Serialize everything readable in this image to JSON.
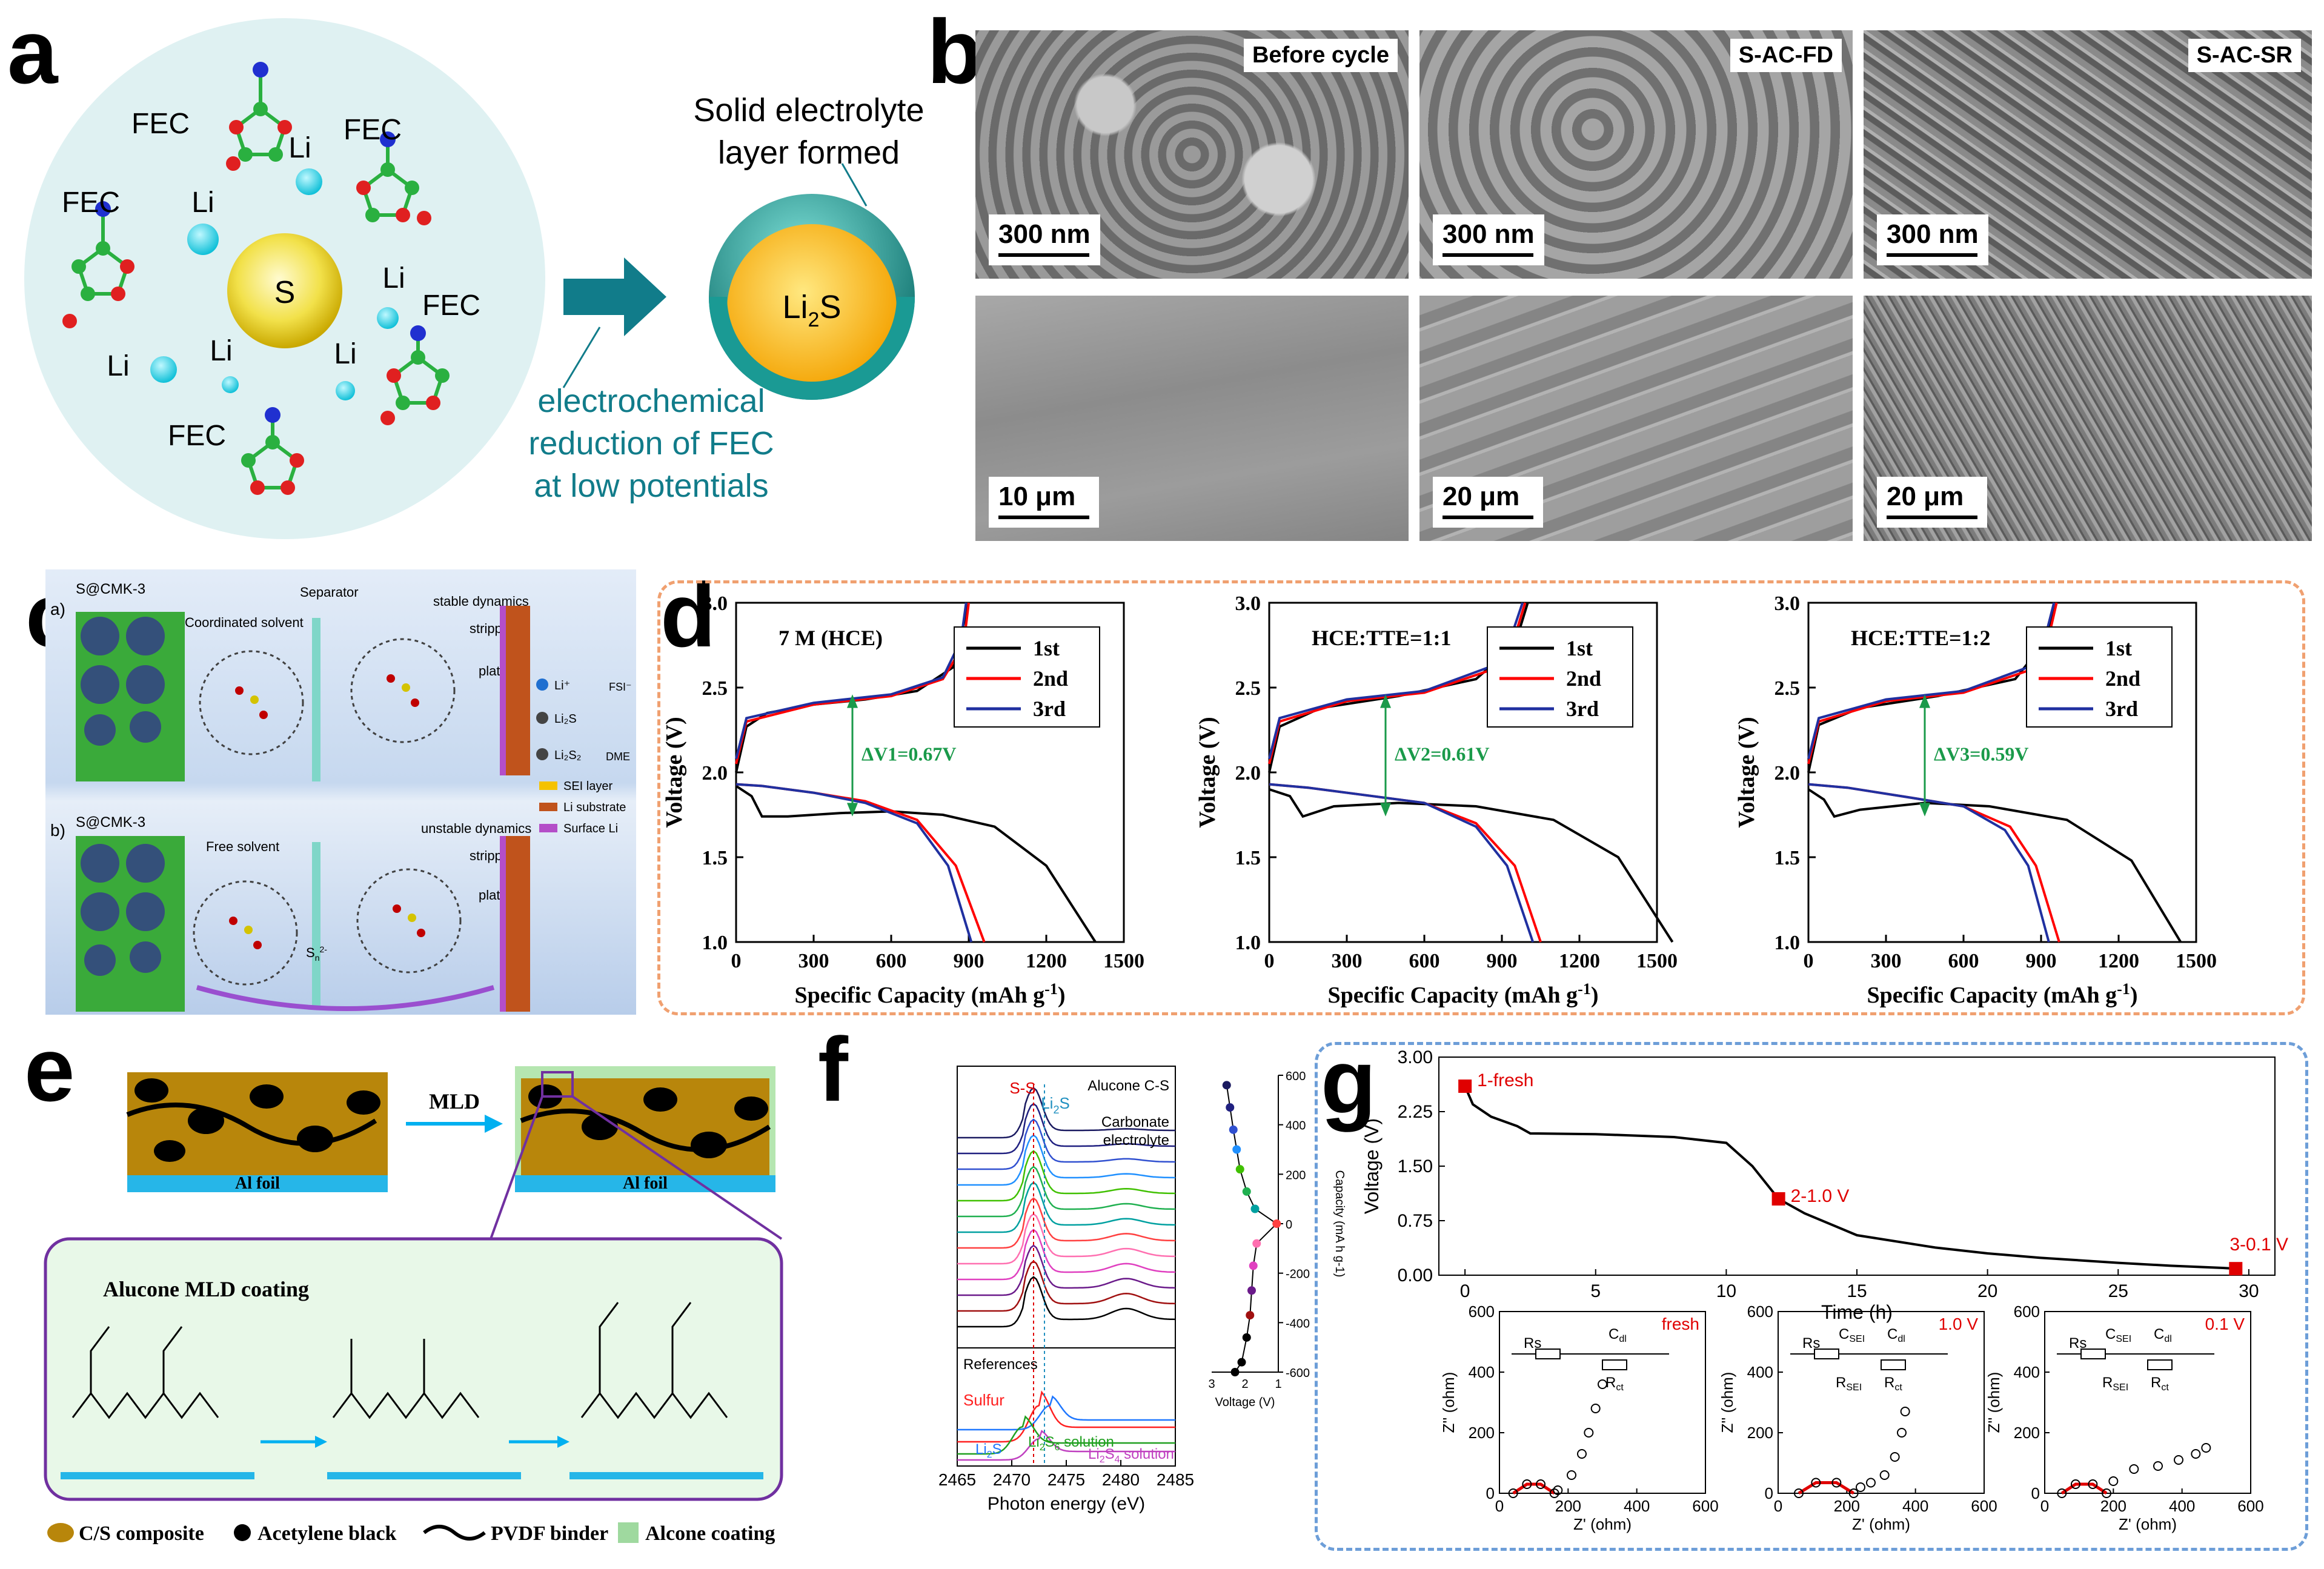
{
  "panel_labels": {
    "a": "a",
    "b": "b",
    "c": "c",
    "d": "d",
    "e": "e",
    "f": "f",
    "g": "g"
  },
  "panel_a": {
    "fec": "FEC",
    "li": "Li",
    "s": "S",
    "li2s_main": "Li",
    "li2s_sub": "2",
    "li2s_end": "S",
    "sei_line1": "Solid electrolyte",
    "sei_line2": "layer formed",
    "red_line1": "electrochemical",
    "red_line2": "reduction of FEC",
    "red_line3": "at low potentials"
  },
  "panel_b": {
    "top": [
      {
        "caption": "Before cycle",
        "scale": "300 nm"
      },
      {
        "caption": "S-AC-FD",
        "scale": "300 nm"
      },
      {
        "caption": "S-AC-SR",
        "scale": "300 nm"
      }
    ],
    "bottom": [
      {
        "scale": "10 μm"
      },
      {
        "scale": "20 μm"
      },
      {
        "scale": "20 μm"
      }
    ]
  },
  "panel_c": {
    "sub_a": "a)",
    "sub_b": "b)",
    "cathode": "S@CMK-3",
    "separator": "Separator",
    "coordinated": "Coordinated solvent",
    "free": "Free solvent",
    "stable": "stable dynamics",
    "unstable": "unstable dynamics",
    "stripping": "stripping",
    "plating": "plating",
    "s8": "S",
    "li2sn": "Li",
    "li2s_s": "Li",
    "sn2": "S",
    "legend": [
      {
        "label": "Li⁺",
        "color": "#1f6fd0"
      },
      {
        "label": "Li₂S",
        "color": "#444444"
      },
      {
        "label": "Li₂S₂",
        "color": "#444444"
      },
      {
        "label": "FSI⁻",
        "color": "#8a2be2"
      },
      {
        "label": "DME",
        "color": "#c00000"
      },
      {
        "label": "SEI layer",
        "color": "#f5c200"
      },
      {
        "label": "Li substrate",
        "color": "#c0531c"
      },
      {
        "label": "Surface Li",
        "color": "#b44ec8"
      }
    ]
  },
  "chart_data": [
    {
      "type": "line",
      "panel": "d1",
      "title": "7 M (HCE)",
      "xlabel": "Specific Capacity (mAh g-1)",
      "ylabel": "Voltage (V)",
      "xlim": [
        0,
        1500
      ],
      "ylim": [
        1.0,
        3.0
      ],
      "xticks": [
        "0",
        "300",
        "600",
        "900",
        "1200",
        "1500"
      ],
      "yticks": [
        "1.0",
        "1.5",
        "2.0",
        "2.5",
        "3.0"
      ],
      "annotation": "ΔV1=0.67V",
      "series": [
        {
          "name": "1st",
          "color": "#000000",
          "discharge": [
            [
              0,
              1.92
            ],
            [
              60,
              1.86
            ],
            [
              100,
              1.74
            ],
            [
              200,
              1.74
            ],
            [
              400,
              1.76
            ],
            [
              600,
              1.77
            ],
            [
              800,
              1.75
            ],
            [
              1000,
              1.68
            ],
            [
              1200,
              1.45
            ],
            [
              1390,
              1.0
            ]
          ],
          "charge": [
            [
              0,
              2.0
            ],
            [
              40,
              2.27
            ],
            [
              120,
              2.35
            ],
            [
              300,
              2.4
            ],
            [
              500,
              2.43
            ],
            [
              700,
              2.48
            ],
            [
              840,
              2.62
            ],
            [
              900,
              3.0
            ]
          ]
        },
        {
          "name": "2nd",
          "color": "#ff0000",
          "discharge": [
            [
              0,
              1.93
            ],
            [
              100,
              1.92
            ],
            [
              300,
              1.88
            ],
            [
              500,
              1.83
            ],
            [
              700,
              1.72
            ],
            [
              850,
              1.45
            ],
            [
              960,
              1.0
            ]
          ],
          "charge": [
            [
              0,
              2.05
            ],
            [
              40,
              2.3
            ],
            [
              300,
              2.4
            ],
            [
              600,
              2.45
            ],
            [
              800,
              2.55
            ],
            [
              880,
              2.75
            ],
            [
              900,
              3.0
            ]
          ]
        },
        {
          "name": "3rd",
          "color": "#2030a0",
          "discharge": [
            [
              0,
              1.93
            ],
            [
              100,
              1.92
            ],
            [
              300,
              1.88
            ],
            [
              500,
              1.82
            ],
            [
              700,
              1.7
            ],
            [
              820,
              1.45
            ],
            [
              910,
              1.0
            ]
          ],
          "charge": [
            [
              0,
              2.08
            ],
            [
              40,
              2.32
            ],
            [
              300,
              2.41
            ],
            [
              600,
              2.46
            ],
            [
              800,
              2.56
            ],
            [
              870,
              2.78
            ],
            [
              890,
              3.0
            ]
          ]
        }
      ]
    },
    {
      "type": "line",
      "panel": "d2",
      "title": "HCE:TTE=1:1",
      "xlabel": "Specific Capacity (mAh g-1)",
      "ylabel": "Voltage (V)",
      "xlim": [
        0,
        1500
      ],
      "ylim": [
        1.0,
        3.0
      ],
      "xticks": [
        "0",
        "300",
        "600",
        "900",
        "1200",
        "1500"
      ],
      "yticks": [
        "1.0",
        "1.5",
        "2.0",
        "2.5",
        "3.0"
      ],
      "annotation": "ΔV2=0.61V",
      "series": [
        {
          "name": "1st",
          "color": "#000000",
          "discharge": [
            [
              0,
              1.9
            ],
            [
              80,
              1.86
            ],
            [
              130,
              1.74
            ],
            [
              250,
              1.8
            ],
            [
              500,
              1.82
            ],
            [
              800,
              1.8
            ],
            [
              1100,
              1.72
            ],
            [
              1350,
              1.5
            ],
            [
              1560,
              1.0
            ]
          ],
          "charge": [
            [
              0,
              2.0
            ],
            [
              40,
              2.27
            ],
            [
              200,
              2.38
            ],
            [
              500,
              2.45
            ],
            [
              800,
              2.55
            ],
            [
              950,
              2.75
            ],
            [
              1000,
              3.0
            ]
          ]
        },
        {
          "name": "2nd",
          "color": "#ff0000",
          "discharge": [
            [
              0,
              1.93
            ],
            [
              150,
              1.91
            ],
            [
              400,
              1.86
            ],
            [
              600,
              1.82
            ],
            [
              800,
              1.7
            ],
            [
              950,
              1.45
            ],
            [
              1050,
              1.0
            ]
          ],
          "charge": [
            [
              0,
              2.05
            ],
            [
              40,
              2.3
            ],
            [
              300,
              2.42
            ],
            [
              600,
              2.47
            ],
            [
              850,
              2.6
            ],
            [
              950,
              2.8
            ],
            [
              990,
              3.0
            ]
          ]
        },
        {
          "name": "3rd",
          "color": "#2030a0",
          "discharge": [
            [
              0,
              1.93
            ],
            [
              150,
              1.91
            ],
            [
              400,
              1.86
            ],
            [
              600,
              1.82
            ],
            [
              800,
              1.68
            ],
            [
              920,
              1.45
            ],
            [
              1020,
              1.0
            ]
          ],
          "charge": [
            [
              0,
              2.08
            ],
            [
              40,
              2.32
            ],
            [
              300,
              2.43
            ],
            [
              600,
              2.48
            ],
            [
              850,
              2.62
            ],
            [
              940,
              2.82
            ],
            [
              980,
              3.0
            ]
          ]
        }
      ]
    },
    {
      "type": "line",
      "panel": "d3",
      "title": "HCE:TTE=1:2",
      "xlabel": "Specific Capacity (mAh g-1)",
      "ylabel": "Voltage (V)",
      "xlim": [
        0,
        1500
      ],
      "ylim": [
        1.0,
        3.0
      ],
      "xticks": [
        "0",
        "300",
        "600",
        "900",
        "1200",
        "1500"
      ],
      "yticks": [
        "1.0",
        "1.5",
        "2.0",
        "2.5",
        "3.0"
      ],
      "annotation": "ΔV3=0.59V",
      "series": [
        {
          "name": "1st",
          "color": "#000000",
          "discharge": [
            [
              0,
              1.9
            ],
            [
              60,
              1.84
            ],
            [
              100,
              1.74
            ],
            [
              200,
              1.78
            ],
            [
              450,
              1.82
            ],
            [
              700,
              1.8
            ],
            [
              1000,
              1.72
            ],
            [
              1250,
              1.48
            ],
            [
              1440,
              1.0
            ]
          ],
          "charge": [
            [
              0,
              2.0
            ],
            [
              40,
              2.28
            ],
            [
              200,
              2.38
            ],
            [
              500,
              2.45
            ],
            [
              800,
              2.55
            ],
            [
              920,
              2.78
            ],
            [
              960,
              3.0
            ]
          ]
        },
        {
          "name": "2nd",
          "color": "#ff0000",
          "discharge": [
            [
              0,
              1.93
            ],
            [
              150,
              1.91
            ],
            [
              400,
              1.85
            ],
            [
              600,
              1.8
            ],
            [
              780,
              1.68
            ],
            [
              880,
              1.45
            ],
            [
              970,
              1.0
            ]
          ],
          "charge": [
            [
              0,
              2.05
            ],
            [
              40,
              2.3
            ],
            [
              300,
              2.42
            ],
            [
              600,
              2.47
            ],
            [
              850,
              2.6
            ],
            [
              930,
              2.8
            ],
            [
              960,
              3.0
            ]
          ]
        },
        {
          "name": "3rd",
          "color": "#2030a0",
          "discharge": [
            [
              0,
              1.93
            ],
            [
              150,
              1.91
            ],
            [
              400,
              1.85
            ],
            [
              600,
              1.8
            ],
            [
              760,
              1.66
            ],
            [
              850,
              1.45
            ],
            [
              930,
              1.0
            ]
          ],
          "charge": [
            [
              0,
              2.08
            ],
            [
              40,
              2.32
            ],
            [
              300,
              2.43
            ],
            [
              600,
              2.48
            ],
            [
              850,
              2.62
            ],
            [
              920,
              2.82
            ],
            [
              950,
              3.0
            ]
          ]
        }
      ]
    },
    {
      "type": "line",
      "panel": "f-main",
      "xlabel": "Photon energy (eV)",
      "xlim": [
        2465,
        2485
      ],
      "xticks": [
        "2465",
        "2470",
        "2475",
        "2480",
        "2485"
      ],
      "labels": {
        "title1": "Alucone C-S",
        "title2": "Carbonate",
        "title3": "electrolyte",
        "ss": "S-S",
        "li2s": "Li",
        "refs": "References",
        "sulfur": "Sulfur",
        "li2s_ref": "Li",
        "li2s6": "Li",
        "li2s4": "Li"
      },
      "num_stacked": 13,
      "stack_colors": [
        "#000000",
        "#a01010",
        "#6a1a8a",
        "#e040c0",
        "#ff6fb0",
        "#ff4040",
        "#00a0a0",
        "#20b050",
        "#40c000",
        "#2090ff",
        "#3050d0",
        "#202080",
        "#1a1a60"
      ]
    },
    {
      "type": "scatter",
      "panel": "f-side",
      "xlabel": "Voltage (V)",
      "ylabel": "Capacity (mA h g-1)",
      "xlim": [
        3,
        1
      ],
      "ylim": [
        -600,
        600
      ],
      "xticks": [
        "3",
        "2",
        "1"
      ],
      "yticks": [
        "600",
        "400",
        "200",
        "0",
        "-200",
        "-400",
        "-600"
      ],
      "points": [
        [
          2.55,
          560
        ],
        [
          2.45,
          470
        ],
        [
          2.35,
          380
        ],
        [
          2.25,
          300
        ],
        [
          2.15,
          220
        ],
        [
          1.95,
          130
        ],
        [
          1.7,
          60
        ],
        [
          1.05,
          0
        ],
        [
          1.65,
          -80
        ],
        [
          1.75,
          -170
        ],
        [
          1.8,
          -270
        ],
        [
          1.85,
          -370
        ],
        [
          1.95,
          -460
        ],
        [
          2.1,
          -560
        ],
        [
          2.3,
          -600
        ]
      ]
    },
    {
      "type": "line",
      "panel": "g-top",
      "xlabel": "Time (h)",
      "ylabel": "Voltage (V)",
      "xlim": [
        -1,
        31
      ],
      "ylim": [
        0,
        3.0
      ],
      "xticks": [
        "0",
        "5",
        "10",
        "15",
        "20",
        "25",
        "30"
      ],
      "yticks": [
        "0.00",
        "0.75",
        "1.50",
        "2.25",
        "3.00"
      ],
      "annotations": [
        "1-fresh",
        "2-1.0 V",
        "3-0.1 V"
      ],
      "x": [
        0,
        0.3,
        1,
        2,
        2.5,
        5,
        8,
        10,
        11,
        12,
        13,
        15,
        18,
        20,
        22,
        25,
        27,
        29,
        29.5
      ],
      "y": [
        2.6,
        2.35,
        2.18,
        2.05,
        1.95,
        1.94,
        1.9,
        1.82,
        1.5,
        1.05,
        0.85,
        0.55,
        0.38,
        0.3,
        0.24,
        0.17,
        0.13,
        0.1,
        0.09
      ]
    },
    {
      "type": "scatter",
      "panel": "g-eis",
      "xlabel": "Z' (ohm)",
      "ylabel": "Z'' (ohm)",
      "xlim": [
        0,
        600
      ],
      "ylim": [
        0,
        600
      ],
      "xticks": [
        "0",
        "200",
        "400",
        "600"
      ],
      "yticks": [
        "0",
        "200",
        "400",
        "600"
      ],
      "states": [
        "fresh",
        "1.0 V",
        "0.1 V"
      ],
      "circuit": {
        "rs": "Rs",
        "cdl": "C",
        "csei": "C",
        "rct": "R",
        "rsei": "R"
      }
    }
  ],
  "panel_d_axes": {
    "ylabel": "Voltage (V)",
    "xlabel": "Specific Capacity (mAh g",
    "xlabel_sup": "-1",
    "xlabel_end": ")"
  },
  "panel_e": {
    "mld": "MLD",
    "alfoil": "Al foil",
    "alucone": "Alucone MLD coating",
    "legend": [
      {
        "label": "C/S composite",
        "color": "#b8860b"
      },
      {
        "label": "Acetylene black",
        "color": "#000000"
      },
      {
        "label": "PVDF binder",
        "color": "#000000"
      },
      {
        "label": "Alcone coating",
        "color": "#9fd99f"
      }
    ]
  }
}
